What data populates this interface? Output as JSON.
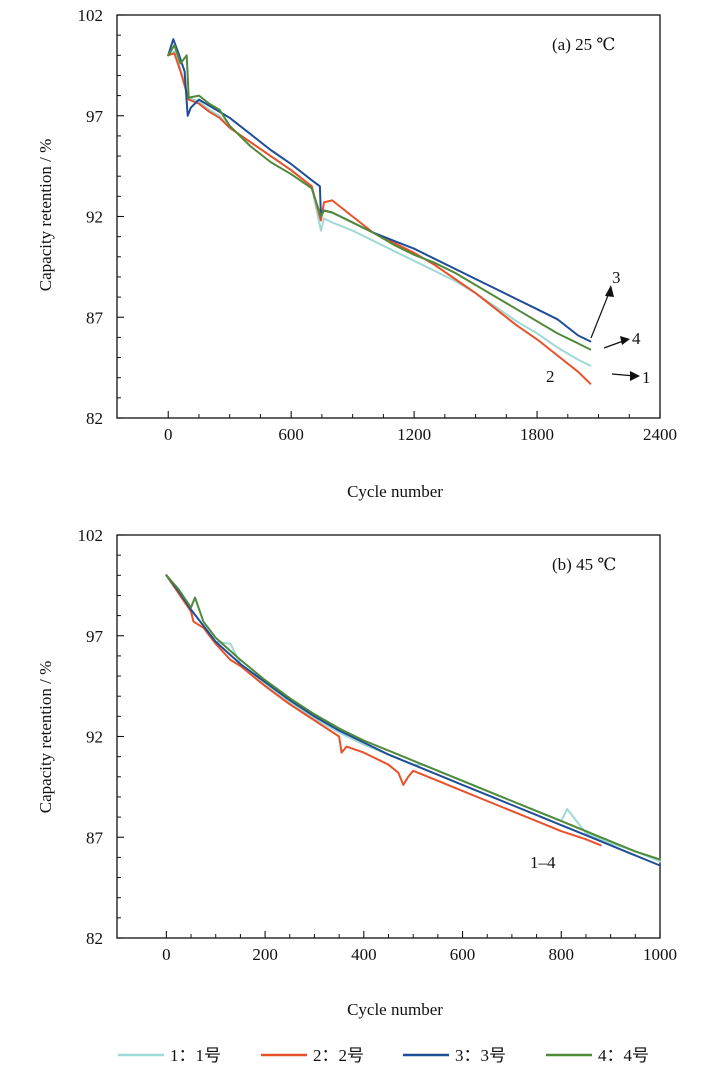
{
  "legend": [
    {
      "key": "1",
      "text": "1：1号",
      "color": "#9fd9d6"
    },
    {
      "key": "2",
      "text": "2：2号",
      "color": "#e8512a"
    },
    {
      "key": "3",
      "text": "3：3号",
      "color": "#1f4e96"
    },
    {
      "key": "4",
      "text": "4：4号",
      "color": "#4f8a3a"
    }
  ],
  "chart_data": [
    {
      "type": "line",
      "panel_label": "(a) 25 ℃",
      "xlabel": "Cycle number",
      "ylabel": "Capacity retention / %",
      "xlim": [
        -250,
        2400
      ],
      "ylim": [
        82,
        102
      ],
      "xticks": [
        0,
        600,
        1200,
        1800,
        2400
      ],
      "yticks": [
        82,
        87,
        92,
        97,
        102
      ],
      "grid": false,
      "annotations": [
        {
          "text": "3",
          "series": "3",
          "arrow": true
        },
        {
          "text": "4",
          "series": "4",
          "arrow": true
        },
        {
          "text": "1",
          "series": "1",
          "arrow": true
        },
        {
          "text": "2",
          "series": "2",
          "arrow": false
        }
      ],
      "series": [
        {
          "name": "1",
          "color": "#9fd9d6",
          "x": [
            0,
            30,
            60,
            100,
            150,
            200,
            250,
            300,
            400,
            500,
            600,
            700,
            745,
            760,
            800,
            900,
            1000,
            1100,
            1200,
            1300,
            1400,
            1500,
            1600,
            1700,
            1800,
            1900,
            2000,
            2060
          ],
          "y": [
            100,
            100.2,
            99.3,
            97.9,
            97.7,
            97.3,
            97.0,
            96.4,
            95.7,
            95.0,
            94.3,
            93.5,
            91.3,
            91.9,
            91.7,
            91.3,
            90.8,
            90.3,
            89.8,
            89.3,
            88.8,
            88.2,
            87.5,
            86.8,
            86.2,
            85.5,
            84.9,
            84.6
          ]
        },
        {
          "name": "2",
          "color": "#e8512a",
          "x": [
            0,
            30,
            60,
            100,
            150,
            200,
            250,
            300,
            400,
            500,
            600,
            700,
            745,
            760,
            800,
            900,
            1000,
            1100,
            1200,
            1300,
            1400,
            1500,
            1600,
            1700,
            1800,
            1900,
            2000,
            2060
          ],
          "y": [
            100,
            100.1,
            99.2,
            97.8,
            97.6,
            97.2,
            96.9,
            96.4,
            95.7,
            95.0,
            94.3,
            93.5,
            91.8,
            92.7,
            92.8,
            92.0,
            91.2,
            90.7,
            90.2,
            89.6,
            88.9,
            88.2,
            87.4,
            86.6,
            85.9,
            85.1,
            84.3,
            83.7
          ]
        },
        {
          "name": "3",
          "color": "#1f4e96",
          "x": [
            0,
            25,
            50,
            80,
            95,
            110,
            150,
            200,
            250,
            300,
            400,
            500,
            600,
            700,
            740,
            745,
            760,
            800,
            900,
            1000,
            1100,
            1200,
            1300,
            1400,
            1500,
            1600,
            1700,
            1800,
            1900,
            2000,
            2060
          ],
          "y": [
            100,
            100.8,
            100.1,
            99.2,
            97.0,
            97.4,
            97.8,
            97.5,
            97.2,
            96.9,
            96.1,
            95.3,
            94.6,
            93.8,
            93.5,
            92.1,
            92.3,
            92.2,
            91.7,
            91.2,
            90.8,
            90.4,
            89.9,
            89.4,
            88.9,
            88.4,
            87.9,
            87.4,
            86.9,
            86.1,
            85.8
          ]
        },
        {
          "name": "4",
          "color": "#4f8a3a",
          "x": [
            0,
            30,
            60,
            90,
            100,
            150,
            200,
            250,
            300,
            400,
            500,
            600,
            700,
            745,
            760,
            800,
            900,
            1000,
            1100,
            1200,
            1300,
            1400,
            1500,
            1600,
            1700,
            1800,
            1900,
            2000,
            2060
          ],
          "y": [
            100,
            100.5,
            99.6,
            100.0,
            97.9,
            98.0,
            97.6,
            97.3,
            96.5,
            95.5,
            94.7,
            94.1,
            93.4,
            92.0,
            92.3,
            92.2,
            91.7,
            91.2,
            90.6,
            90.1,
            89.7,
            89.2,
            88.6,
            88.0,
            87.4,
            86.8,
            86.2,
            85.7,
            85.4
          ]
        }
      ]
    },
    {
      "type": "line",
      "panel_label": "(b) 45 ℃",
      "xlabel": "Cycle number",
      "ylabel": "Capacity retention / %",
      "xlim": [
        -100,
        1000
      ],
      "ylim": [
        82,
        102
      ],
      "xticks": [
        0,
        200,
        400,
        600,
        800,
        1000
      ],
      "yticks": [
        82,
        87,
        92,
        97,
        102
      ],
      "grid": false,
      "annotations": [
        {
          "text": "1–4",
          "series": "all",
          "arrow": false
        }
      ],
      "series": [
        {
          "name": "1",
          "color": "#9fd9d6",
          "x": [
            0,
            25,
            50,
            75,
            100,
            130,
            150,
            200,
            250,
            300,
            350,
            400,
            450,
            500,
            520,
            550,
            600,
            650,
            700,
            750,
            800,
            812,
            850,
            900,
            940,
            1000
          ],
          "y": [
            100,
            99.2,
            98.3,
            97.5,
            96.7,
            96.6,
            95.6,
            94.6,
            93.7,
            92.9,
            92.2,
            91.6,
            91.1,
            90.6,
            90.6,
            90.3,
            89.8,
            89.3,
            88.8,
            88.3,
            87.8,
            88.4,
            87.2,
            86.7,
            86.4,
            85.8
          ]
        },
        {
          "name": "2",
          "color": "#e8512a",
          "x": [
            0,
            25,
            50,
            55,
            75,
            100,
            130,
            150,
            200,
            250,
            300,
            350,
            355,
            365,
            400,
            450,
            470,
            480,
            490,
            500,
            550,
            600,
            650,
            700,
            750,
            800,
            850,
            880
          ],
          "y": [
            100,
            99.1,
            98.2,
            97.7,
            97.4,
            96.6,
            95.8,
            95.5,
            94.5,
            93.6,
            92.8,
            92.0,
            91.2,
            91.5,
            91.2,
            90.6,
            90.2,
            89.6,
            90.0,
            90.3,
            89.8,
            89.3,
            88.8,
            88.3,
            87.8,
            87.3,
            86.9,
            86.6
          ]
        },
        {
          "name": "3",
          "color": "#1f4e96",
          "x": [
            0,
            25,
            50,
            75,
            100,
            150,
            200,
            250,
            300,
            350,
            400,
            450,
            500,
            550,
            600,
            650,
            700,
            750,
            800,
            850,
            900,
            950,
            1000
          ],
          "y": [
            100,
            99.2,
            98.3,
            97.5,
            96.7,
            95.6,
            94.7,
            93.8,
            93.0,
            92.3,
            91.7,
            91.1,
            90.6,
            90.1,
            89.6,
            89.1,
            88.6,
            88.1,
            87.6,
            87.1,
            86.6,
            86.1,
            85.6
          ]
        },
        {
          "name": "4",
          "color": "#4f8a3a",
          "x": [
            0,
            25,
            50,
            58,
            75,
            100,
            150,
            200,
            250,
            300,
            350,
            400,
            450,
            500,
            550,
            600,
            650,
            700,
            750,
            800,
            850,
            900,
            950,
            1000
          ],
          "y": [
            100,
            99.3,
            98.4,
            98.9,
            97.7,
            96.9,
            95.8,
            94.8,
            93.9,
            93.1,
            92.4,
            91.8,
            91.3,
            90.8,
            90.3,
            89.8,
            89.3,
            88.8,
            88.3,
            87.8,
            87.3,
            86.8,
            86.3,
            85.9
          ]
        }
      ]
    }
  ]
}
